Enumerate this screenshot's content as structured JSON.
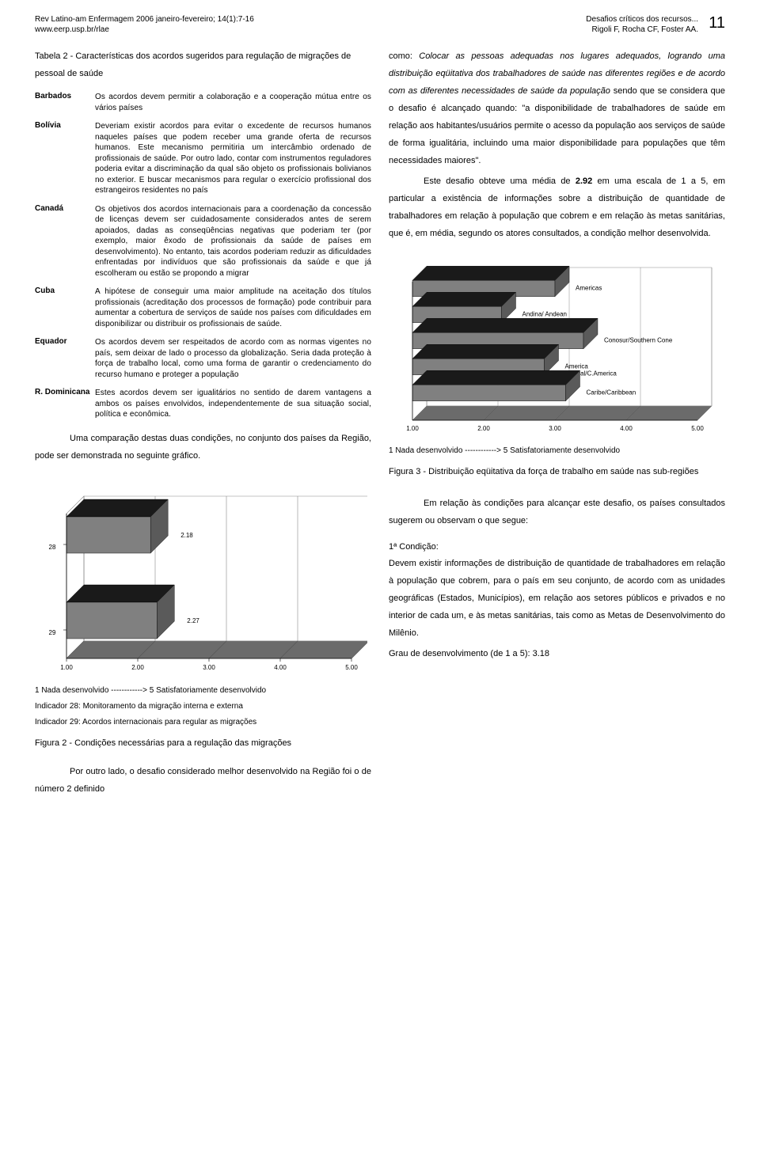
{
  "header": {
    "journal": "Rev Latino-am Enfermagem 2006 janeiro-fevereiro; 14(1):7-16",
    "url": "www.eerp.usp.br/rlae",
    "title_short": "Desafios críticos dos recursos...",
    "authors": "Rigoli F, Rocha CF, Foster AA.",
    "page": "11"
  },
  "table2": {
    "title": "Tabela 2 - Características dos acordos sugeridos para regulação de migrações de pessoal de saúde",
    "rows": [
      {
        "country": "Barbados",
        "desc": "Os acordos devem permitir a colaboração e a cooperação mútua entre os vários países"
      },
      {
        "country": "Bolívia",
        "desc": "Deveriam existir acordos para evitar o excedente de recursos humanos naqueles países que podem receber uma grande oferta de recursos humanos. Este mecanismo permitiria um intercâmbio ordenado de profissionais de saúde. Por outro lado, contar com instrumentos reguladores poderia evitar a discriminação da qual são objeto os profissionais bolivianos no exterior. E buscar mecanismos para regular o exercício profissional dos estrangeiros residentes no país"
      },
      {
        "country": "Canadá",
        "desc": "Os objetivos dos acordos internacionais para a coordenação da concessão de licenças devem ser cuidadosamente considerados antes de serem apoiados, dadas as conseqüências negativas que poderiam ter (por exemplo, maior êxodo de profissionais da saúde de países em desenvolvimento). No entanto, tais acordos poderiam reduzir as dificuldades enfrentadas por indivíduos que são profissionais da saúde e que já escolheram ou estão se propondo a migrar"
      },
      {
        "country": "Cuba",
        "desc": "A hipótese de conseguir uma maior amplitude na aceitação dos títulos profissionais (acreditação dos processos de formação) pode contribuir para aumentar a cobertura de serviços de saúde nos países com dificuldades em disponibilizar ou distribuir os profissionais de saúde."
      },
      {
        "country": "Equador",
        "desc": "Os acordos devem ser respeitados de acordo com as normas vigentes no país, sem deixar de lado o processo da globalização. Seria dada proteção à força de trabalho local, como uma forma de garantir o credenciamento do recurso humano e proteger a população"
      },
      {
        "country": "R. Dominicana",
        "desc": "Estes acordos devem ser igualitários no sentido de darem vantagens a ambos os países envolvidos, independentemente de sua situação social, política e econômica."
      }
    ]
  },
  "left_para": "Uma comparação destas duas condições, no conjunto dos países da Região, pode ser demonstrada no seguinte gráfico.",
  "right_paras": [
    "como: <i>Colocar as pessoas adequadas nos lugares adequados, logrando uma distribuição eqüitativa dos trabalhadores de saúde nas diferentes regiões e de acordo com as diferentes necessidades de saúde da população</i> sendo que se considera que o desafio é alcançado quando: \"a disponibilidade de trabalhadores de saúde em relação aos habitantes/usuários permite o acesso da população aos serviços de saúde de forma igualitária, incluindo uma maior disponibilidade para populações que têm necessidades maiores\".",
    "Este desafio obteve uma média de <b>2.92</b> em uma escala de 1 a 5, em particular a existência de informações sobre a distribuição de quantidade de trabalhadores em relação à população que cobrem e em relação às metas sanitárias, que é, em média, segundo os atores consultados, a condição melhor desenvolvida."
  ],
  "chart3": {
    "x_ticks": [
      "1.00",
      "2.00",
      "3.00",
      "4.00",
      "5.00"
    ],
    "regions": [
      "Americas",
      "Andina/ Andean",
      "Conosur/Southern Cone",
      "America\nCentral/C.America",
      "Caribe/Caribbean"
    ],
    "values": [
      3.0,
      2.25,
      3.4,
      2.85,
      3.15
    ],
    "legend": "1 Nada desenvolvido ------------> 5 Satisfatoriamente desenvolvido",
    "figure_title": "Figura 3 - Distribuição eqüitativa da força de trabalho em saúde nas sub-regiões",
    "colors": {
      "bar_top_dark": "#1a1a1a",
      "bar_front": "#808080",
      "bar_side": "#5a5a5a",
      "floor": "#6b6b6b",
      "floor_side": "#4a4a4a",
      "wall": "#ffffff",
      "axis": "#888888"
    }
  },
  "chart2": {
    "x_ticks": [
      "1.00",
      "2.00",
      "3.00",
      "4.00",
      "5.00"
    ],
    "bars": [
      {
        "label": "28",
        "value": 2.18,
        "text": "2.18"
      },
      {
        "label": "29",
        "value": 2.27,
        "text": "2.27"
      }
    ],
    "legend": "1 Nada desenvolvido ------------> 5 Satisfatoriamente desenvolvido",
    "sub1": "Indicador 28: Monitoramento da migração interna e externa",
    "sub2": "Indicador 29: Acordos internacionais para regular as migrações",
    "figure_title": "Figura 2 - Condições necessárias para a regulação das migrações",
    "colors": {
      "bar_top": "#1a1a1a",
      "bar_front": "#808080",
      "bar_side": "#5a5a5a",
      "floor": "#6b6b6b",
      "wall": "#ffffff",
      "axis": "#888888"
    }
  },
  "bottom_left_para": "Por outro lado, o desafio considerado melhor desenvolvido na Região foi o de número 2 definido",
  "right_bottom": {
    "para1": "Em relação às condições para alcançar este desafio, os países consultados sugerem ou observam o que segue:",
    "cond_title": "1ª Condição:",
    "cond_text": "Devem existir informações de distribuição de quantidade de trabalhadores em relação à população que cobrem, para o país em seu conjunto, de acordo com as unidades geográficas (Estados, Municípios), em relação aos setores públicos e privados e no interior de cada um, e às metas sanitárias, tais como as Metas de Desenvolvimento do Milênio.",
    "grau": "Grau de desenvolvimento (de 1 a 5): 3.18"
  }
}
